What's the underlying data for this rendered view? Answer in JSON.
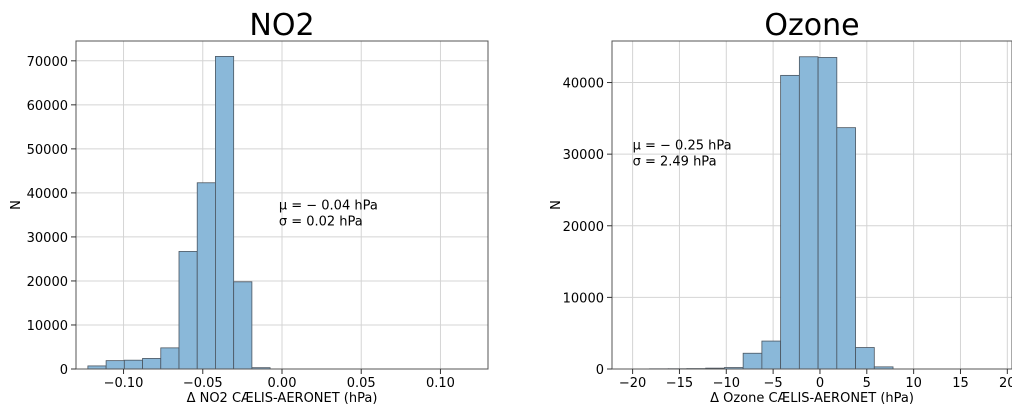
{
  "chart_data": [
    {
      "type": "bar",
      "title": "NO2",
      "xlabel": "Δ NO2 CÆLIS-AERONET (hPa)",
      "ylabel": "N",
      "xlim": [
        -0.13,
        0.13
      ],
      "ylim": [
        0,
        74500
      ],
      "grid": true,
      "bar_color": "#8ab8d9",
      "edge_color": "#4a5560",
      "x_ticks": [
        -0.1,
        -0.05,
        0.0,
        0.05,
        0.1
      ],
      "x_tick_labels": [
        "−0.10",
        "−0.05",
        "0.00",
        "0.05",
        "0.10"
      ],
      "y_ticks": [
        0,
        10000,
        20000,
        30000,
        40000,
        50000,
        60000,
        70000
      ],
      "y_tick_labels": [
        "0",
        "10000",
        "20000",
        "30000",
        "40000",
        "50000",
        "60000",
        "70000"
      ],
      "bins": [
        {
          "x0": -0.1225,
          "x1": -0.111,
          "value": 700
        },
        {
          "x0": -0.111,
          "x1": -0.0995,
          "value": 1900
        },
        {
          "x0": -0.0995,
          "x1": -0.088,
          "value": 2000
        },
        {
          "x0": -0.088,
          "x1": -0.0765,
          "value": 2400
        },
        {
          "x0": -0.0765,
          "x1": -0.065,
          "value": 4800
        },
        {
          "x0": -0.065,
          "x1": -0.0535,
          "value": 26700
        },
        {
          "x0": -0.0535,
          "x1": -0.042,
          "value": 42300
        },
        {
          "x0": -0.042,
          "x1": -0.0305,
          "value": 71000
        },
        {
          "x0": -0.0305,
          "x1": -0.019,
          "value": 19800
        },
        {
          "x0": -0.019,
          "x1": -0.0075,
          "value": 300
        }
      ],
      "annotation": {
        "x": -0.002,
        "y": 33500,
        "line1": "μ = − 0.04 hPa",
        "line2": "σ = 0.02 hPa"
      }
    },
    {
      "type": "bar",
      "title": "Ozone",
      "xlabel": "Δ Ozone CÆLIS-AERONET (hPa)",
      "ylabel": "N",
      "xlim": [
        -22.2,
        20.5
      ],
      "ylim": [
        0,
        45800
      ],
      "grid": true,
      "bar_color": "#8ab8d9",
      "edge_color": "#4a5560",
      "x_ticks": [
        -20,
        -15,
        -10,
        -5,
        0,
        5,
        10,
        15,
        20
      ],
      "x_tick_labels": [
        "−20",
        "−15",
        "−10",
        "−5",
        "0",
        "5",
        "10",
        "15",
        "20"
      ],
      "y_ticks": [
        0,
        10000,
        20000,
        30000,
        40000
      ],
      "y_tick_labels": [
        "0",
        "10000",
        "20000",
        "30000",
        "40000"
      ],
      "bins": [
        {
          "x0": -18.2,
          "x1": -16.2,
          "value": 30
        },
        {
          "x0": -16.2,
          "x1": -14.2,
          "value": 40
        },
        {
          "x0": -14.2,
          "x1": -12.2,
          "value": 60
        },
        {
          "x0": -12.2,
          "x1": -10.2,
          "value": 120
        },
        {
          "x0": -10.2,
          "x1": -8.2,
          "value": 200
        },
        {
          "x0": -8.2,
          "x1": -6.2,
          "value": 2200
        },
        {
          "x0": -6.2,
          "x1": -4.2,
          "value": 3900
        },
        {
          "x0": -4.2,
          "x1": -2.2,
          "value": 41000
        },
        {
          "x0": -2.2,
          "x1": -0.2,
          "value": 43600
        },
        {
          "x0": -0.2,
          "x1": 1.8,
          "value": 43500
        },
        {
          "x0": 1.8,
          "x1": 3.8,
          "value": 33700
        },
        {
          "x0": 3.8,
          "x1": 5.8,
          "value": 3000
        },
        {
          "x0": 5.8,
          "x1": 7.8,
          "value": 300
        }
      ],
      "annotation": {
        "x": -20.0,
        "y": 29000,
        "line1": "μ = − 0.25 hPa",
        "line2": "σ = 2.49 hPa"
      }
    }
  ]
}
